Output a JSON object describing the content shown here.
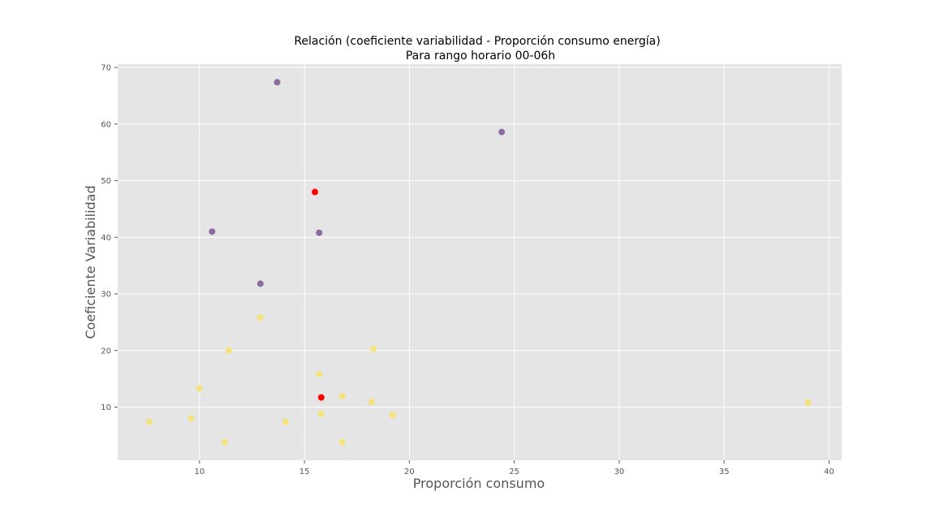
{
  "chart_data": {
    "type": "scatter",
    "title": "Relación (coeficiente variabilidad - Proporción consumo energía)",
    "subtitle": "Para rango horario 00-06h",
    "xlabel": "Proporción consumo",
    "ylabel": "Coeficiente Variabilidad",
    "xlim": [
      6.1,
      40.6
    ],
    "ylim": [
      0.6,
      70.6
    ],
    "xticks": [
      10,
      15,
      20,
      25,
      30,
      35,
      40
    ],
    "yticks": [
      10,
      20,
      30,
      40,
      50,
      60,
      70
    ],
    "grid": true,
    "legend": "none",
    "background_color": "#e5e5e5",
    "cluster_colors": {
      "purple": "#8e6b9e",
      "yellow": "#f4e37c",
      "red": "#ff0000"
    },
    "points": [
      {
        "x": 13.7,
        "y": 67.4,
        "c": "purple"
      },
      {
        "x": 24.4,
        "y": 58.6,
        "c": "purple"
      },
      {
        "x": 10.6,
        "y": 41.0,
        "c": "purple"
      },
      {
        "x": 15.7,
        "y": 40.8,
        "c": "purple"
      },
      {
        "x": 12.9,
        "y": 31.8,
        "c": "purple"
      },
      {
        "x": 15.5,
        "y": 48.0,
        "c": "red"
      },
      {
        "x": 15.8,
        "y": 11.7,
        "c": "red"
      },
      {
        "x": 12.9,
        "y": 25.8,
        "c": "yellow"
      },
      {
        "x": 11.4,
        "y": 20.0,
        "c": "yellow"
      },
      {
        "x": 18.3,
        "y": 20.3,
        "c": "yellow"
      },
      {
        "x": 15.7,
        "y": 15.8,
        "c": "yellow"
      },
      {
        "x": 10.0,
        "y": 13.3,
        "c": "yellow"
      },
      {
        "x": 16.8,
        "y": 11.9,
        "c": "yellow"
      },
      {
        "x": 18.2,
        "y": 10.9,
        "c": "yellow"
      },
      {
        "x": 39.0,
        "y": 10.8,
        "c": "yellow"
      },
      {
        "x": 15.8,
        "y": 8.8,
        "c": "yellow"
      },
      {
        "x": 19.2,
        "y": 8.6,
        "c": "yellow"
      },
      {
        "x": 9.6,
        "y": 8.0,
        "c": "yellow"
      },
      {
        "x": 7.6,
        "y": 7.4,
        "c": "yellow"
      },
      {
        "x": 14.1,
        "y": 7.4,
        "c": "yellow"
      },
      {
        "x": 11.2,
        "y": 3.8,
        "c": "yellow"
      },
      {
        "x": 16.8,
        "y": 3.8,
        "c": "yellow"
      }
    ]
  }
}
